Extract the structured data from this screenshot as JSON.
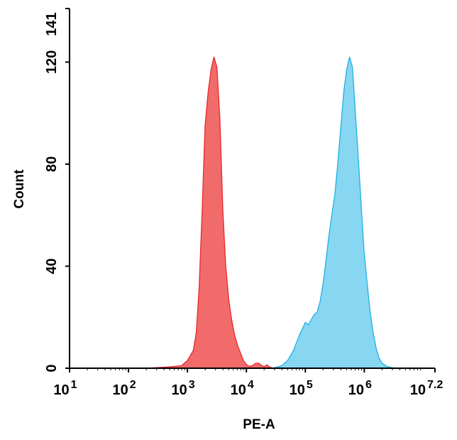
{
  "chart_data": {
    "type": "area",
    "xlabel": "PE-A",
    "ylabel": "Count",
    "x_scale": "log10",
    "xlim": [
      1,
      7.2
    ],
    "ylim": [
      0,
      141
    ],
    "x_ticks": [
      {
        "exp": 1,
        "base": "10",
        "sup": "1"
      },
      {
        "exp": 2,
        "base": "10",
        "sup": "2"
      },
      {
        "exp": 3,
        "base": "10",
        "sup": "3"
      },
      {
        "exp": 4,
        "base": "10",
        "sup": "4"
      },
      {
        "exp": 5,
        "base": "10",
        "sup": "5"
      },
      {
        "exp": 6,
        "base": "10",
        "sup": "6"
      },
      {
        "exp": 7.2,
        "base": "10",
        "sup": "7.2"
      }
    ],
    "y_ticks": [
      {
        "value": 0,
        "label": "0"
      },
      {
        "value": 40,
        "label": "40"
      },
      {
        "value": 80,
        "label": "80"
      },
      {
        "value": 120,
        "label": "120"
      },
      {
        "value": 141,
        "label": "141"
      }
    ],
    "grid": false,
    "legend": "none",
    "series": [
      {
        "color": "#f26b6b",
        "stroke": "#e8262b",
        "x_log10": [
          2.3,
          2.7,
          2.9,
          3.0,
          3.1,
          3.15,
          3.2,
          3.25,
          3.3,
          3.35,
          3.4,
          3.45,
          3.5,
          3.55,
          3.6,
          3.65,
          3.7,
          3.75,
          3.8,
          3.85,
          3.9,
          3.95,
          4.0,
          4.05,
          4.1,
          4.15,
          4.2,
          4.25,
          4.3,
          4.35,
          4.4,
          4.45
        ],
        "y": [
          0,
          0.5,
          1,
          3,
          7,
          14,
          32,
          62,
          95,
          108,
          117,
          122,
          118,
          98,
          62,
          40,
          27,
          19,
          13,
          9,
          6,
          3,
          1.5,
          0.7,
          1,
          1.8,
          2,
          1.2,
          0.6,
          1.3,
          0.4,
          0
        ]
      },
      {
        "color": "#87d6f2",
        "stroke": "#22b0e4",
        "x_log10": [
          4.45,
          4.6,
          4.7,
          4.8,
          4.9,
          5.0,
          5.05,
          5.1,
          5.15,
          5.2,
          5.25,
          5.3,
          5.35,
          5.4,
          5.45,
          5.5,
          5.55,
          5.6,
          5.65,
          5.7,
          5.75,
          5.8,
          5.85,
          5.9,
          5.95,
          6.0,
          6.05,
          6.1,
          6.15,
          6.2,
          6.25,
          6.3,
          6.35,
          6.4,
          6.45,
          6.5,
          6.55
        ],
        "y": [
          0,
          1,
          3,
          7,
          13,
          18,
          17,
          19,
          21,
          22,
          26,
          33,
          42,
          52,
          60,
          68,
          80,
          94,
          108,
          117,
          122,
          118,
          100,
          82,
          63,
          45,
          33,
          22,
          14,
          8,
          4,
          2,
          1.2,
          0.6,
          0.3,
          0.1,
          0
        ]
      }
    ]
  }
}
